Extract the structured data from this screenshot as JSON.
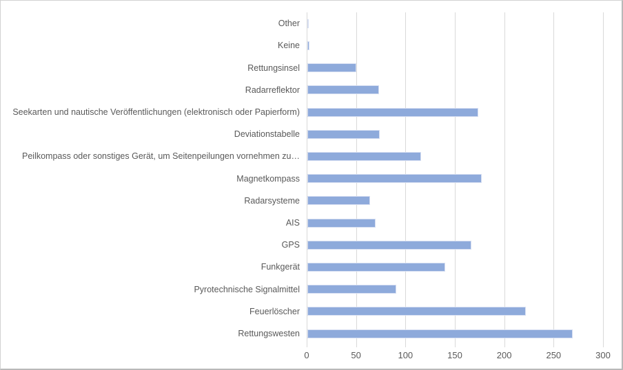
{
  "chart_data": {
    "type": "bar",
    "orientation": "horizontal",
    "title": "",
    "xlabel": "",
    "ylabel": "",
    "categories": [
      "Other",
      "Keine",
      "Rettungsinsel",
      "Radarreflektor",
      "Seekarten und nautische Veröffentlichungen (elektronisch oder Papierform)",
      "Deviationstabelle",
      "Peilkompass oder sonstiges Gerät, um Seitenpeilungen vornehmen zu…",
      "Magnetkompass",
      "Radarsysteme",
      "AIS",
      "GPS",
      "Funkgerät",
      "Pyrotechnische Signalmittel",
      "Feuerlöscher",
      "Rettungswesten"
    ],
    "values": [
      1,
      3,
      50,
      73,
      174,
      74,
      116,
      177,
      64,
      70,
      167,
      140,
      91,
      222,
      269
    ],
    "xlim": [
      0,
      300
    ],
    "xticks": [
      0,
      50,
      100,
      150,
      200,
      250,
      300
    ],
    "grid": true,
    "legend_position": "none",
    "bar_color": "#8EAADB",
    "gridline_color": "#D9D9D9",
    "axis_label_color": "#595959"
  }
}
